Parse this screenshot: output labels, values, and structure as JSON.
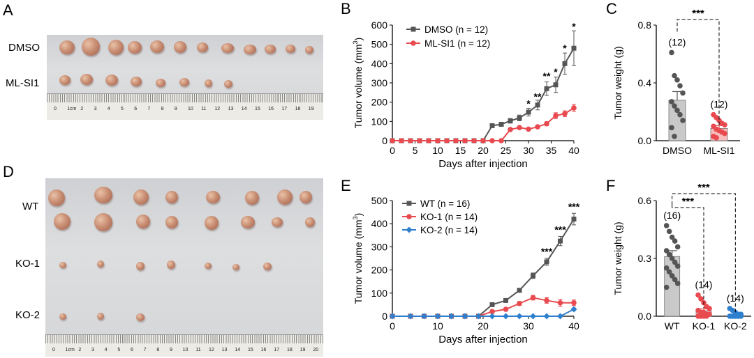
{
  "panels": {
    "A": {
      "letter": "A",
      "rows": [
        "DMSO",
        "ML-SI1"
      ],
      "ruler_numbers": [
        "0",
        "1cm",
        "2",
        "3",
        "4",
        "5",
        "6",
        "7",
        "8",
        "9",
        "10",
        "11",
        "12",
        "13",
        "14",
        "15",
        "16",
        "17",
        "18",
        "19"
      ]
    },
    "D": {
      "letter": "D",
      "rows": [
        "WT",
        "KO-1",
        "KO-2"
      ],
      "ruler_numbers": [
        "0",
        "1cm",
        "2",
        "3",
        "4",
        "5",
        "6",
        "7",
        "8",
        "9",
        "10",
        "11",
        "12",
        "13",
        "14",
        "15",
        "16",
        "17",
        "18",
        "19",
        "20"
      ]
    }
  },
  "colors": {
    "gray": "#555555",
    "red": "#e84a4f",
    "blue": "#2f7fcf",
    "bar_gray": "#c9c9c9",
    "bar_red": "#f7bcbc",
    "bar_blue": "#cfe1f5"
  },
  "chart_data": [
    {
      "id": "B",
      "letter": "B",
      "type": "line",
      "xlabel": "Days after  injection",
      "ylabel": "Tumor volume (mm³)",
      "xlim": [
        0,
        40
      ],
      "ylim": [
        0,
        600
      ],
      "xticks": [
        0,
        5,
        10,
        15,
        20,
        25,
        30,
        35,
        40
      ],
      "yticks": [
        0,
        100,
        200,
        300,
        400,
        500,
        600
      ],
      "x": [
        0,
        2,
        4,
        6,
        8,
        10,
        12,
        14,
        16,
        18,
        20,
        22,
        24,
        26,
        28,
        30,
        32,
        34,
        36,
        38,
        40
      ],
      "series": [
        {
          "name": "DMSO (n = 12)",
          "color": "gray",
          "marker": "square",
          "values": [
            0,
            0,
            0,
            0,
            0,
            0,
            0,
            0,
            0,
            0,
            0,
            78,
            85,
            103,
            118,
            148,
            185,
            270,
            290,
            400,
            480
          ],
          "errors": [
            0,
            0,
            0,
            0,
            0,
            0,
            0,
            0,
            0,
            0,
            0,
            8,
            10,
            12,
            15,
            20,
            25,
            35,
            40,
            55,
            90
          ]
        },
        {
          "name": "ML-SI1 (n = 12)",
          "color": "red",
          "marker": "circle",
          "values": [
            0,
            0,
            0,
            0,
            0,
            0,
            0,
            0,
            0,
            0,
            0,
            0,
            0,
            58,
            68,
            60,
            72,
            88,
            130,
            140,
            170
          ],
          "errors": [
            0,
            0,
            0,
            0,
            0,
            0,
            0,
            0,
            0,
            0,
            0,
            0,
            0,
            6,
            8,
            6,
            8,
            10,
            15,
            15,
            18
          ]
        }
      ],
      "annotations": [
        {
          "x": 30,
          "y": 175,
          "text": "*"
        },
        {
          "x": 32,
          "y": 212,
          "text": "**"
        },
        {
          "x": 34,
          "y": 318,
          "text": "**"
        },
        {
          "x": 36,
          "y": 340,
          "text": "*"
        },
        {
          "x": 38,
          "y": 462,
          "text": "*"
        },
        {
          "x": 40,
          "y": 575,
          "text": "*"
        }
      ]
    },
    {
      "id": "C",
      "letter": "C",
      "type": "bar",
      "ylabel": "Tumor weight (g)",
      "ylim": [
        0,
        0.8
      ],
      "yticks": [
        0.0,
        0.4,
        0.8
      ],
      "categories": [
        "DMSO",
        "ML-SI1"
      ],
      "values": [
        0.28,
        0.085
      ],
      "errors": [
        0.06,
        0.02
      ],
      "n_labels": [
        "(12)",
        "(12)"
      ],
      "series_colors": [
        "gray",
        "red"
      ],
      "points": [
        [
          0.61,
          0.45,
          0.42,
          0.38,
          0.33,
          0.27,
          0.24,
          0.21,
          0.18,
          0.14,
          0.09,
          0.03
        ],
        [
          0.18,
          0.16,
          0.14,
          0.12,
          0.11,
          0.1,
          0.08,
          0.07,
          0.06,
          0.05,
          0.03,
          0.02
        ]
      ],
      "significance": [
        {
          "from": 0,
          "to": 1,
          "text": "***"
        }
      ]
    },
    {
      "id": "E",
      "letter": "E",
      "type": "line",
      "xlabel": "Days after injection",
      "ylabel": "Tumor volume (mm³)",
      "xlim": [
        0,
        40
      ],
      "ylim": [
        0,
        500
      ],
      "xticks": [
        0,
        10,
        20,
        30,
        40
      ],
      "yticks": [
        0,
        100,
        200,
        300,
        400,
        500
      ],
      "x": [
        0,
        4,
        7,
        10,
        13,
        16,
        19,
        22,
        25,
        28,
        31,
        34,
        37,
        40
      ],
      "series": [
        {
          "name": "WT (n = 16)",
          "color": "gray",
          "marker": "square",
          "values": [
            0,
            0,
            0,
            0,
            0,
            0,
            0,
            50,
            68,
            112,
            175,
            235,
            325,
            420
          ],
          "errors": [
            0,
            0,
            0,
            0,
            0,
            0,
            0,
            4,
            5,
            8,
            12,
            15,
            20,
            25
          ]
        },
        {
          "name": "KO-1 (n = 14)",
          "color": "red",
          "marker": "circle",
          "values": [
            0,
            0,
            0,
            0,
            0,
            0,
            0,
            20,
            30,
            55,
            80,
            68,
            58,
            58
          ],
          "errors": [
            0,
            0,
            0,
            0,
            0,
            0,
            0,
            3,
            4,
            8,
            10,
            12,
            15,
            12
          ]
        },
        {
          "name": "KO-2 (n = 14)",
          "color": "blue",
          "marker": "diamond",
          "values": [
            0,
            0,
            0,
            0,
            0,
            0,
            0,
            0,
            0,
            0,
            0,
            0,
            0,
            30
          ],
          "errors": [
            0,
            0,
            0,
            0,
            0,
            0,
            0,
            0,
            0,
            0,
            0,
            0,
            0,
            5
          ]
        }
      ],
      "annotations": [
        {
          "x": 34,
          "y": 265,
          "text": "***"
        },
        {
          "x": 37,
          "y": 360,
          "text": "***"
        },
        {
          "x": 40,
          "y": 460,
          "text": "***"
        }
      ]
    },
    {
      "id": "F",
      "letter": "F",
      "type": "bar",
      "ylabel": "Tumor weight (g)",
      "ylim": [
        0,
        0.6
      ],
      "yticks": [
        0.0,
        0.3,
        0.6
      ],
      "categories": [
        "WT",
        "KO-1",
        "KO-2"
      ],
      "values": [
        0.31,
        0.028,
        0.006
      ],
      "errors": [
        0.03,
        0.01,
        0.005
      ],
      "n_labels": [
        "(16)",
        "(14)",
        "(14)"
      ],
      "series_colors": [
        "gray",
        "red",
        "blue"
      ],
      "points": [
        [
          0.47,
          0.44,
          0.41,
          0.39,
          0.36,
          0.34,
          0.32,
          0.3,
          0.28,
          0.26,
          0.25,
          0.23,
          0.21,
          0.19,
          0.17,
          0.15
        ],
        [
          0.11,
          0.09,
          0.07,
          0.05,
          0.04,
          0.03,
          0.02,
          0.02,
          0.01,
          0.01,
          0.0,
          0.0,
          0.0,
          0.0
        ],
        [
          0.04,
          0.03,
          0.02,
          0.01,
          0.01,
          0.0,
          0.0,
          0.0,
          0.0,
          0.0,
          0.0,
          0.0,
          0.0,
          0.0
        ]
      ],
      "significance": [
        {
          "from": 0,
          "to": 1,
          "text": "***",
          "level": 0
        },
        {
          "from": 0,
          "to": 2,
          "text": "***",
          "level": 1
        }
      ]
    }
  ]
}
